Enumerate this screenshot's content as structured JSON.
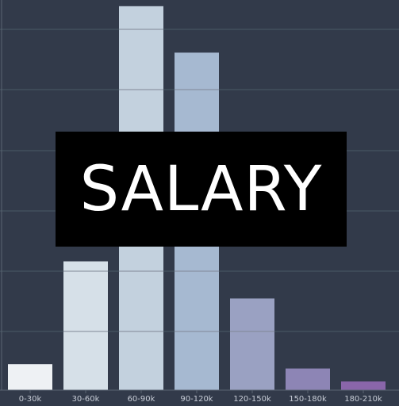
{
  "chart_data": {
    "type": "bar",
    "title": "SALARY",
    "xlabel": "",
    "ylabel": "",
    "categories": [
      "0-30k",
      "30-60k",
      "60-90k",
      "90-120k",
      "120-150k",
      "150-180k",
      "180-210k"
    ],
    "values": [
      42,
      208,
      620,
      545,
      148,
      35,
      14
    ],
    "ylim": [
      0,
      630
    ],
    "grid": true,
    "legend": "none",
    "colors": [
      "#eef1f4",
      "#d6e0e8",
      "#c3d1de",
      "#a6b9d1",
      "#9aa1c2",
      "#8d85b5",
      "#8a66aa"
    ],
    "colors_meta": {
      "background": "#323a4a",
      "gridline": "#4a5a66",
      "bar_gridline": "#808896"
    }
  }
}
